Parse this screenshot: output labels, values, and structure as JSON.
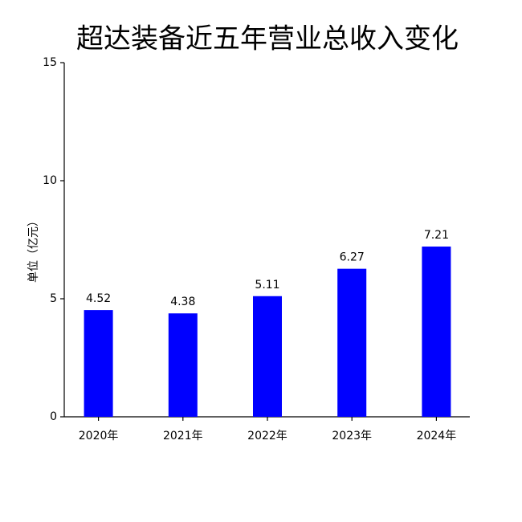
{
  "chart_data": {
    "type": "bar",
    "title": "超达装备近五年营业总收入变化",
    "y_label": "单位（亿元）",
    "categories": [
      "2020年",
      "2021年",
      "2022年",
      "2023年",
      "2024年"
    ],
    "values": [
      4.52,
      4.38,
      5.11,
      6.27,
      7.21
    ],
    "color": "#0000ff",
    "ylim": [
      0,
      15
    ],
    "yticks": [
      0,
      5,
      10,
      15
    ],
    "grid": false
  }
}
